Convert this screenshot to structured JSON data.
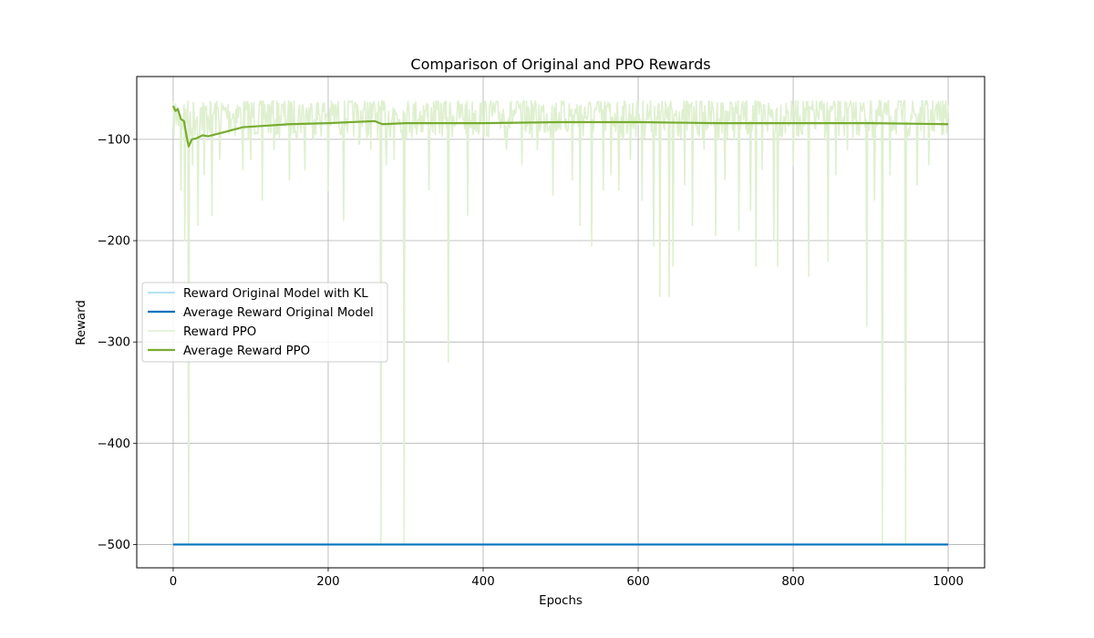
{
  "chart_data": {
    "type": "line",
    "title": "Comparison of Original and PPO Rewards",
    "xlabel": "Epochs",
    "ylabel": "Reward",
    "xlim": [
      -47,
      1047
    ],
    "ylim": [
      -523,
      -38
    ],
    "xticks": [
      0,
      200,
      400,
      600,
      800,
      1000
    ],
    "yticks": [
      -500,
      -400,
      -300,
      -200,
      -100
    ],
    "grid": true,
    "legend_position": "center-left",
    "series": [
      {
        "name": "Reward Original Model with KL",
        "color": "#87ceeb",
        "style": "thin",
        "x": [
          0,
          1000
        ],
        "y": [
          -500,
          -500
        ]
      },
      {
        "name": "Average Reward Original Model",
        "color": "#0072bd",
        "style": "thick",
        "x": [
          0,
          1000
        ],
        "y": [
          -500,
          -500
        ]
      },
      {
        "name": "Reward PPO",
        "color": "#dff0d0",
        "style": "noisy",
        "x": [
          0,
          1000
        ],
        "baseline": -72,
        "spread": [
          -62,
          -100
        ],
        "dips": [
          [
            10,
            -150
          ],
          [
            15,
            -200
          ],
          [
            20,
            -500
          ],
          [
            25,
            -125
          ],
          [
            32,
            -185
          ],
          [
            40,
            -135
          ],
          [
            50,
            -175
          ],
          [
            60,
            -120
          ],
          [
            90,
            -130
          ],
          [
            100,
            -120
          ],
          [
            115,
            -160
          ],
          [
            130,
            -110
          ],
          [
            150,
            -140
          ],
          [
            170,
            -130
          ],
          [
            200,
            -150
          ],
          [
            220,
            -180
          ],
          [
            240,
            -105
          ],
          [
            255,
            -110
          ],
          [
            268,
            -500
          ],
          [
            275,
            -125
          ],
          [
            285,
            -120
          ],
          [
            298,
            -500
          ],
          [
            330,
            -150
          ],
          [
            355,
            -320
          ],
          [
            380,
            -175
          ],
          [
            430,
            -110
          ],
          [
            450,
            -125
          ],
          [
            470,
            -110
          ],
          [
            490,
            -155
          ],
          [
            515,
            -140
          ],
          [
            525,
            -185
          ],
          [
            540,
            -205
          ],
          [
            555,
            -150
          ],
          [
            565,
            -135
          ],
          [
            575,
            -150
          ],
          [
            590,
            -120
          ],
          [
            605,
            -160
          ],
          [
            620,
            -205
          ],
          [
            628,
            -255
          ],
          [
            640,
            -255
          ],
          [
            645,
            -225
          ],
          [
            660,
            -145
          ],
          [
            670,
            -185
          ],
          [
            685,
            -110
          ],
          [
            700,
            -195
          ],
          [
            712,
            -140
          ],
          [
            730,
            -190
          ],
          [
            745,
            -170
          ],
          [
            752,
            -225
          ],
          [
            760,
            -130
          ],
          [
            775,
            -200
          ],
          [
            780,
            -225
          ],
          [
            800,
            -125
          ],
          [
            820,
            -235
          ],
          [
            845,
            -220
          ],
          [
            855,
            -135
          ],
          [
            870,
            -110
          ],
          [
            895,
            -285
          ],
          [
            905,
            -160
          ],
          [
            915,
            -500
          ],
          [
            925,
            -135
          ],
          [
            945,
            -500
          ],
          [
            960,
            -145
          ],
          [
            975,
            -125
          ]
        ]
      },
      {
        "name": "Average Reward PPO",
        "color": "#77ac30",
        "style": "thick",
        "x": [
          0,
          3,
          6,
          10,
          14,
          18,
          20,
          24,
          30,
          38,
          45,
          55,
          70,
          90,
          110,
          150,
          200,
          260,
          270,
          300,
          350,
          400,
          500,
          600,
          700,
          800,
          900,
          1000
        ],
        "y": [
          -67,
          -72,
          -70,
          -80,
          -82,
          -100,
          -107,
          -100,
          -99,
          -96,
          -97,
          -95,
          -92,
          -88,
          -87,
          -85,
          -84,
          -82,
          -85,
          -84,
          -84,
          -84,
          -83,
          -83,
          -84,
          -84,
          -84,
          -85
        ]
      }
    ]
  }
}
